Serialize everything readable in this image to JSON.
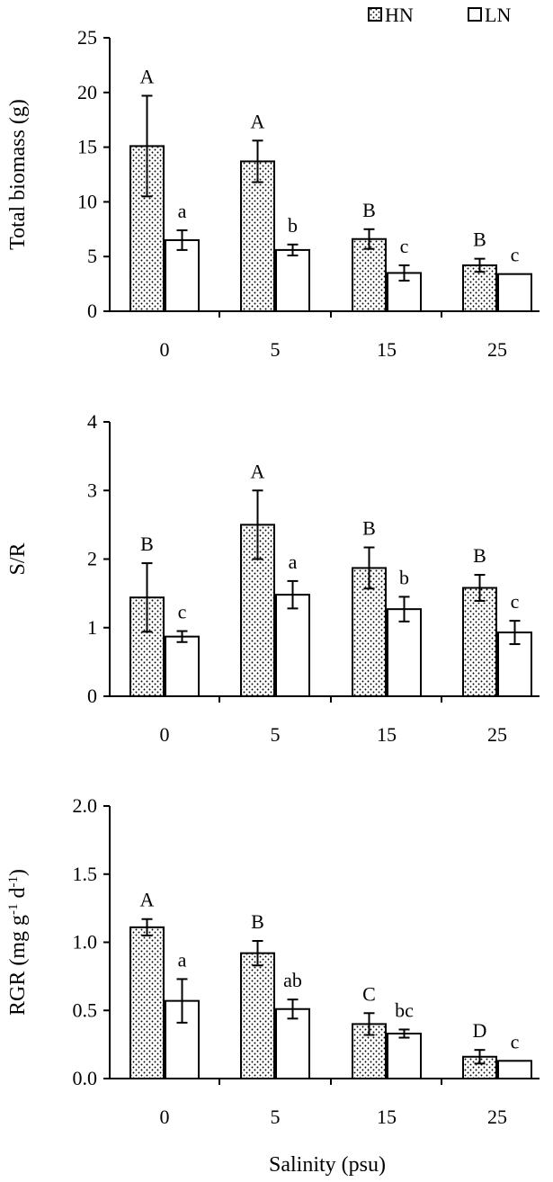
{
  "legend": [
    {
      "key": "HN",
      "label": "HN",
      "pattern": "dots"
    },
    {
      "key": "LN",
      "label": "LN",
      "pattern": "none"
    }
  ],
  "xlabel": "Salinity (psu)",
  "chart_data": [
    {
      "type": "bar",
      "categories": [
        "0",
        "5",
        "15",
        "25"
      ],
      "ylabel": "Total biomass (g)",
      "ylim": [
        0,
        25
      ],
      "yticks": [
        "0",
        "5",
        "10",
        "15",
        "20",
        "25"
      ],
      "series": [
        {
          "name": "HN",
          "values": [
            15.1,
            13.7,
            6.6,
            4.2
          ],
          "errors": [
            4.6,
            1.9,
            0.9,
            0.6
          ],
          "labels": [
            "A",
            "A",
            "B",
            "B"
          ]
        },
        {
          "name": "LN",
          "values": [
            6.5,
            5.6,
            3.5,
            3.4
          ],
          "errors": [
            0.9,
            0.5,
            0.7,
            0.0
          ],
          "labels": [
            "a",
            "b",
            "c",
            "c"
          ]
        }
      ]
    },
    {
      "type": "bar",
      "categories": [
        "0",
        "5",
        "15",
        "25"
      ],
      "ylabel": "S/R",
      "ylim": [
        0,
        4
      ],
      "yticks": [
        "0",
        "1",
        "2",
        "3",
        "4"
      ],
      "series": [
        {
          "name": "HN",
          "values": [
            1.44,
            2.5,
            1.87,
            1.58
          ],
          "errors": [
            0.5,
            0.5,
            0.3,
            0.19
          ],
          "labels": [
            "B",
            "A",
            "B",
            "B"
          ]
        },
        {
          "name": "LN",
          "values": [
            0.87,
            1.48,
            1.27,
            0.93
          ],
          "errors": [
            0.08,
            0.2,
            0.18,
            0.17
          ],
          "labels": [
            "c",
            "a",
            "b",
            "c"
          ]
        }
      ]
    },
    {
      "type": "bar",
      "categories": [
        "0",
        "5",
        "15",
        "25"
      ],
      "ylabel": "RGR (mg g-1 d-1)",
      "ylabel_parts": [
        "RGR (mg g",
        "-1",
        " d",
        "-1",
        ")"
      ],
      "ylim": [
        0,
        2.0
      ],
      "yticks": [
        "0.0",
        "0.5",
        "1.0",
        "1.5",
        "2.0"
      ],
      "series": [
        {
          "name": "HN",
          "values": [
            1.11,
            0.92,
            0.4,
            0.16
          ],
          "errors": [
            0.06,
            0.09,
            0.08,
            0.05
          ],
          "labels": [
            "A",
            "B",
            "C",
            "D"
          ]
        },
        {
          "name": "LN",
          "values": [
            0.57,
            0.51,
            0.33,
            0.13
          ],
          "errors": [
            0.16,
            0.07,
            0.03,
            0.0
          ],
          "labels": [
            "a",
            "ab",
            "bc",
            "c"
          ]
        }
      ]
    }
  ]
}
